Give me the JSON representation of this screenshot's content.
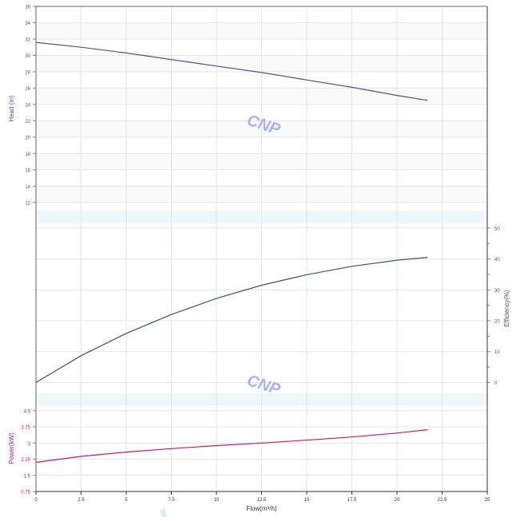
{
  "chart_data": {
    "type": "line",
    "x_axis": {
      "label": "Flow(m³/h)",
      "range": [
        0,
        25
      ],
      "ticks": [
        "0",
        "2.5",
        "5",
        "7.5",
        "10",
        "12.5",
        "15",
        "17.5",
        "20",
        "22.5",
        "25"
      ]
    },
    "panels": [
      {
        "name": "head",
        "ylabel": "Head (m)",
        "ylim": [
          11,
          36
        ],
        "yticks": [
          "12",
          "14",
          "16",
          "18",
          "20",
          "22",
          "24",
          "26",
          "28",
          "30",
          "32",
          "34",
          "36"
        ],
        "axis_side": "left",
        "series": [
          {
            "x": [
              0,
              2.5,
              5,
              7.5,
              10,
              12.5,
              15,
              17.5,
              20,
              21.7
            ],
            "y": [
              31.6,
              31.0,
              30.3,
              29.5,
              28.7,
              27.9,
              27.0,
              26.1,
              25.1,
              24.5
            ]
          }
        ]
      },
      {
        "name": "efficiency",
        "ylabel": "Efficiency(%)",
        "ylim": [
          -3.5,
          51.5
        ],
        "yticks": [
          "0",
          "10",
          "20",
          "30",
          "40",
          "50"
        ],
        "axis_side": "right",
        "series": [
          {
            "x": [
              0,
              2.5,
              5,
              7.5,
              10,
              12.5,
              15,
              17.5,
              20,
              21.7
            ],
            "y": [
              0,
              8.7,
              15.9,
              22.0,
              27.2,
              31.5,
              34.9,
              37.6,
              39.6,
              40.5
            ]
          }
        ]
      },
      {
        "name": "power",
        "ylabel": "Power(kW)",
        "ylim": [
          0.75,
          4.75
        ],
        "yticks": [
          "0.75",
          "1.5",
          "2.25",
          "3",
          "3.75",
          "4.5"
        ],
        "axis_side": "left",
        "series": [
          {
            "x": [
              0,
              2.5,
              5,
              7.5,
              10,
              12.5,
              15,
              17.5,
              20,
              21.7
            ],
            "y": [
              2.1,
              2.38,
              2.58,
              2.74,
              2.88,
              3.0,
              3.13,
              3.28,
              3.46,
              3.62
            ]
          }
        ]
      }
    ],
    "watermark": "CNP",
    "grid": true
  },
  "style": {
    "head_color": "#5b4b96",
    "efficiency_color": "#3d5a4a",
    "power_color": "#c0197a",
    "band_color": "#eef7fb",
    "watermark_color": "#aab2ee",
    "tick_label_color": "#555555"
  }
}
